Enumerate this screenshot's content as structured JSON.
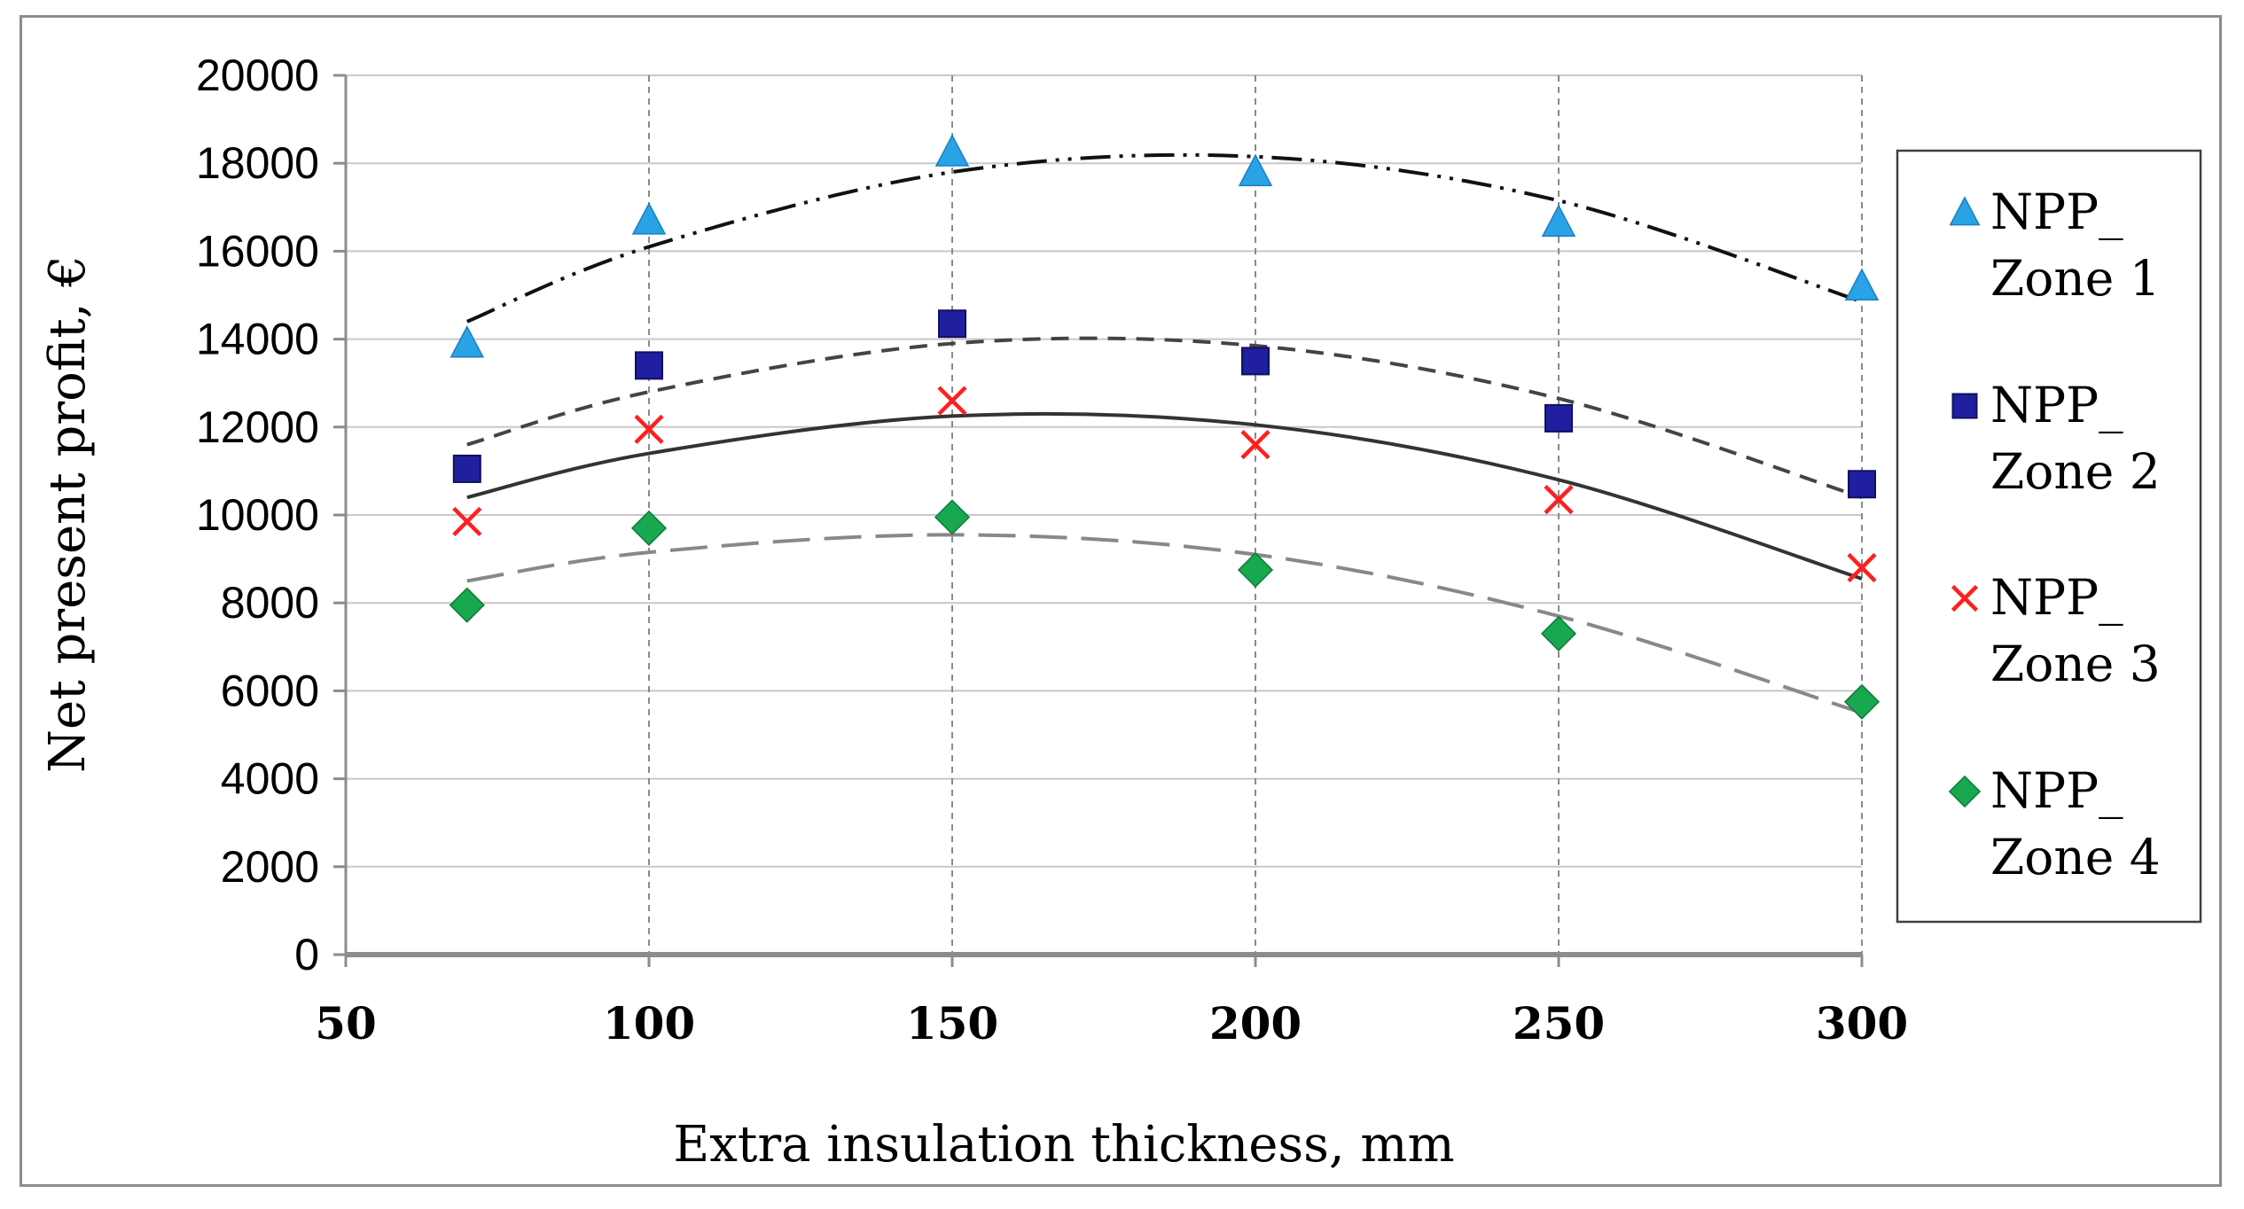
{
  "chart_data": {
    "type": "scatter",
    "title": "",
    "xlabel": "Extra insulation thickness, mm",
    "ylabel": "Net present profit, €",
    "xlim": [
      50,
      300
    ],
    "ylim": [
      0,
      20000
    ],
    "x_ticks": [
      "50",
      "100",
      "150",
      "200",
      "250",
      "300"
    ],
    "y_ticks": [
      "0",
      "2000",
      "4000",
      "6000",
      "8000",
      "10000",
      "12000",
      "14000",
      "16000",
      "18000",
      "20000"
    ],
    "x_tick_values": [
      50,
      100,
      150,
      200,
      250,
      300
    ],
    "y_tick_values": [
      0,
      2000,
      4000,
      6000,
      8000,
      10000,
      12000,
      14000,
      16000,
      18000,
      20000
    ],
    "grid": {
      "vertical": "dashed",
      "horizontal": "solid"
    },
    "legend_position": "right",
    "x": [
      70,
      100,
      150,
      200,
      250,
      300
    ],
    "series": [
      {
        "name_line1": "NPP_",
        "name_line2": "Zone 1",
        "marker": "triangle",
        "color": "#29a3e6",
        "trend_color": "#111111",
        "trend_style": "dash-dot-dot",
        "values": [
          13900,
          16700,
          18250,
          17800,
          16650,
          15200
        ],
        "trend": [
          14400,
          16100,
          17800,
          18150,
          17150,
          14850
        ]
      },
      {
        "name_line1": "NPP_",
        "name_line2": "Zone 2",
        "marker": "square",
        "color": "#1f1fa0",
        "trend_color": "#444444",
        "trend_style": "dashed",
        "values": [
          11050,
          13400,
          14350,
          13500,
          12200,
          10700
        ],
        "trend": [
          11600,
          12800,
          13900,
          13850,
          12650,
          10400
        ]
      },
      {
        "name_line1": "NPP_",
        "name_line2": "Zone 3",
        "marker": "x",
        "color": "#ff1f1f",
        "trend_color": "#333333",
        "trend_style": "solid",
        "values": [
          9850,
          11950,
          12600,
          11600,
          10350,
          8800
        ],
        "trend": [
          10400,
          11400,
          12250,
          12050,
          10800,
          8550
        ]
      },
      {
        "name_line1": "NPP_",
        "name_line2": "Zone 4",
        "marker": "diamond",
        "color": "#18a850",
        "trend_color": "#888888",
        "trend_style": "long-dash",
        "values": [
          7950,
          9700,
          9950,
          8750,
          7300,
          5750
        ],
        "trend": [
          8500,
          9150,
          9550,
          9100,
          7700,
          5500
        ]
      }
    ]
  }
}
